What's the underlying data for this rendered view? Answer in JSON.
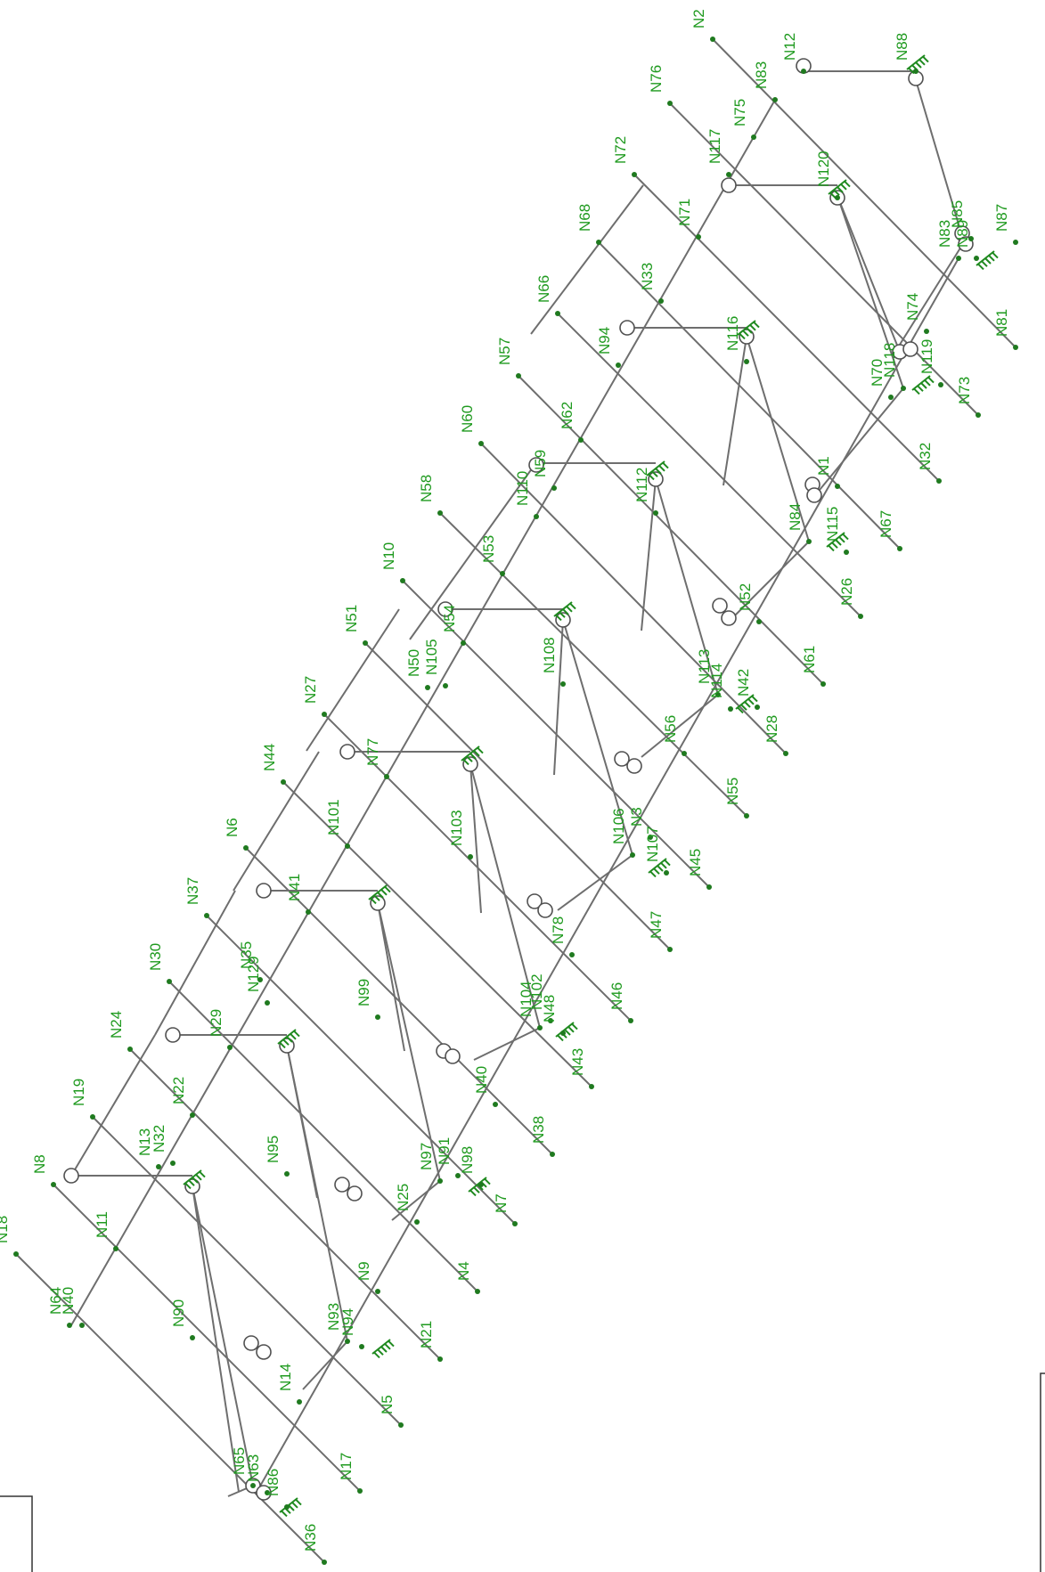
{
  "nodes": [
    "N2",
    "N12",
    "N88",
    "N83",
    "N76",
    "N75",
    "N117",
    "N120",
    "N72",
    "N71",
    "N68",
    "N33",
    "N66",
    "N94",
    "N116",
    "N57",
    "N62",
    "N60",
    "N110",
    "N59",
    "N112",
    "N58",
    "N53",
    "N10",
    "N54",
    "N51",
    "N105",
    "N50",
    "N108",
    "N27",
    "N77",
    "N44",
    "N101",
    "N103",
    "N6",
    "N41",
    "N37",
    "N35",
    "N129",
    "N99",
    "N30",
    "N29",
    "N24",
    "N22",
    "N19",
    "N13",
    "N32",
    "N95",
    "N8",
    "N11",
    "N18",
    "N64",
    "N40",
    "N90",
    "N25",
    "N9",
    "N97",
    "N91",
    "N98",
    "N93",
    "N94b",
    "N14",
    "N65",
    "N63",
    "N86",
    "N36",
    "N17",
    "N5",
    "N21",
    "N4",
    "N7",
    "N38",
    "N40b",
    "N43",
    "N48",
    "N104",
    "N102",
    "N78",
    "N46",
    "N47",
    "N45",
    "N3",
    "N107",
    "N106",
    "N56",
    "N55",
    "N28",
    "N42",
    "N113",
    "N114",
    "N52",
    "N61",
    "N26",
    "N115",
    "N84",
    "N1",
    "N67",
    "N32b",
    "N70",
    "N118",
    "N119",
    "N73",
    "N74",
    "N81",
    "N83b",
    "N89",
    "N87",
    "N85"
  ],
  "labels": {
    "N2": "N2",
    "N12": "N12",
    "N88": "N88",
    "N83": "N83",
    "N76": "N76",
    "N75": "N75",
    "N117": "N117",
    "N120": "N120",
    "N72": "N72",
    "N71": "N71",
    "N68": "N68",
    "N33": "N33",
    "N66": "N66",
    "N94": "N94",
    "N116": "N116",
    "N57": "N57",
    "N62": "N62",
    "N60": "N60",
    "N110": "N110",
    "N59": "N59",
    "N112": "N112",
    "N58": "N58",
    "N53": "N53",
    "N10": "N10",
    "N54": "N54",
    "N51": "N51",
    "N105": "N105",
    "N50": "N50",
    "N108": "N108",
    "N27": "N27",
    "N77": "N77",
    "N44": "N44",
    "N101": "N101",
    "N103": "N103",
    "N6": "N6",
    "N41": "N41",
    "N37": "N37",
    "N35": "N35",
    "N129": "N129",
    "N99": "N99",
    "N30": "N30",
    "N29": "N29",
    "N24": "N24",
    "N22": "N22",
    "N19": "N19",
    "N13": "N13",
    "N32": "N32",
    "N95": "N95",
    "N8": "N8",
    "N11": "N11",
    "N18": "N18",
    "N64": "N64",
    "N40": "N40",
    "N90": "N90",
    "N25": "N25",
    "N9": "N9",
    "N97": "N97",
    "N91": "N91",
    "N98": "N98",
    "N93": "N93",
    "N94b": "N94",
    "N14": "N14",
    "N65": "N65",
    "N63": "N63",
    "N86": "N86",
    "N36": "N36",
    "N17": "N17",
    "N5": "N5",
    "N21": "N21",
    "N4": "N4",
    "N7": "N7",
    "N38": "N38",
    "N40b": "N40",
    "N43": "N43",
    "N48": "N48",
    "N104": "N104",
    "N102": "N102",
    "N78": "N78",
    "N46": "N46",
    "N47": "N47",
    "N45": "N45",
    "N3": "N3",
    "N107": "N107",
    "N106": "N106",
    "N56": "N56",
    "N55": "N55",
    "N28": "N28",
    "N42": "N42",
    "N113": "N113",
    "N114": "N114",
    "N52": "N52",
    "N61": "N61",
    "N26": "N26",
    "N115": "N115",
    "N84": "N84",
    "N1": "N1",
    "N67": "N67",
    "N32b": "N32",
    "N70": "N70",
    "N118": "N118",
    "N119": "N119",
    "N73": "N73",
    "N74": "N74",
    "N81": "N81",
    "N83b": "N83",
    "N89": "N89",
    "N87": "N87",
    "N85": "N85"
  }
}
